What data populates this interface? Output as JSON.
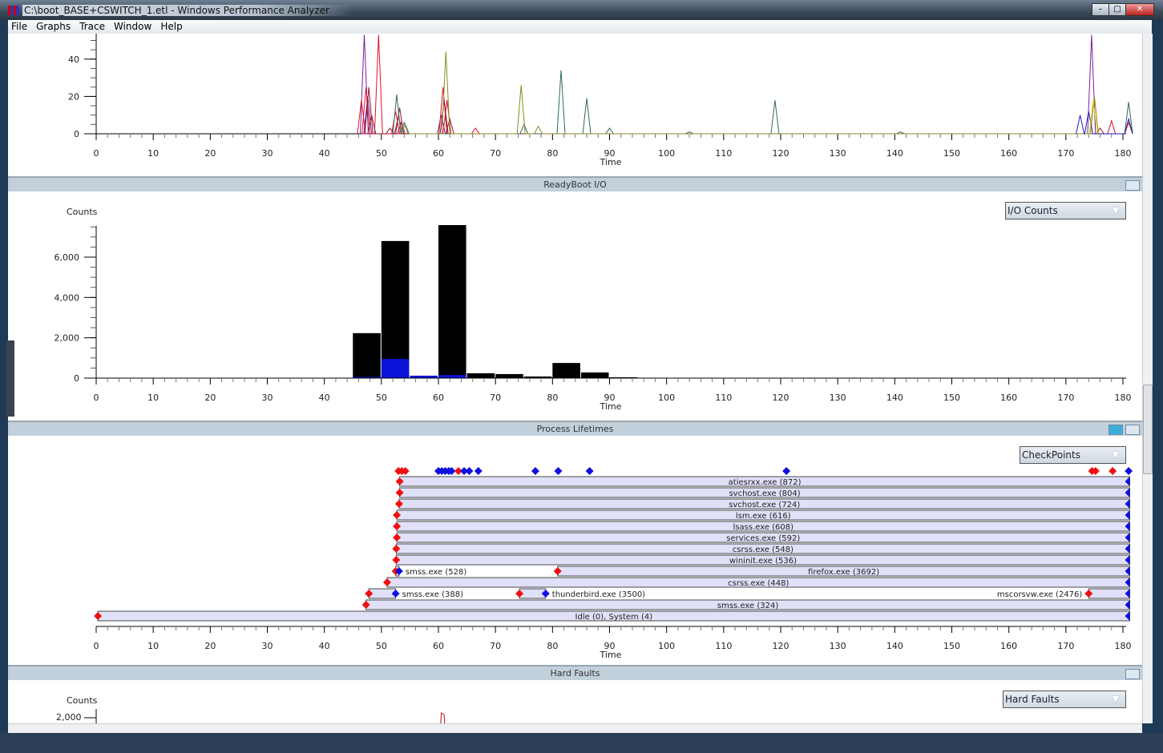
{
  "window": {
    "title": "C:\\boot_BASE+CSWITCH_1.etl - Windows Performance Analyzer",
    "minimize": "–",
    "maximize": "□",
    "close": "✕"
  },
  "menu": [
    "File",
    "Graphs",
    "Trace",
    "Window",
    "Help"
  ],
  "axis": {
    "xlabel": "Time",
    "xticks": [
      0,
      10,
      20,
      30,
      40,
      50,
      60,
      70,
      80,
      90,
      100,
      110,
      120,
      130,
      140,
      150,
      160,
      170,
      180
    ],
    "xlim": [
      0,
      181
    ]
  },
  "cpu_graph": {
    "yticks": [
      0,
      20,
      40
    ],
    "ylim": [
      0,
      53
    ],
    "series": [
      {
        "color": "#7a1fa0",
        "peaks": [
          [
            47,
            53
          ],
          [
            47.6,
            20
          ],
          [
            53.5,
            6
          ],
          [
            60.5,
            10
          ],
          [
            174.5,
            53
          ],
          [
            199,
            0
          ]
        ]
      },
      {
        "color": "#e0102a",
        "peaks": [
          [
            46.5,
            18
          ],
          [
            47.3,
            25
          ],
          [
            49.5,
            53
          ],
          [
            52.5,
            12
          ],
          [
            53,
            10
          ],
          [
            60.8,
            25
          ],
          [
            61.5,
            18
          ],
          [
            66.5,
            3
          ],
          [
            178,
            7
          ],
          [
            181,
            6
          ]
        ]
      },
      {
        "color": "#8b1a2a",
        "peaks": [
          [
            47.8,
            25
          ],
          [
            48.3,
            10
          ],
          [
            51.5,
            3
          ],
          [
            53.2,
            14
          ],
          [
            61,
            18
          ],
          [
            62,
            8
          ],
          [
            176,
            3
          ]
        ]
      },
      {
        "color": "#2e6b58",
        "peaks": [
          [
            52.7,
            21
          ],
          [
            54,
            6
          ],
          [
            75,
            5
          ],
          [
            81.5,
            34
          ],
          [
            86,
            19
          ],
          [
            90,
            3
          ],
          [
            104,
            1
          ],
          [
            119,
            18
          ],
          [
            141,
            1
          ],
          [
            181,
            17
          ]
        ]
      },
      {
        "color": "#8a8a20",
        "peaks": [
          [
            54.2,
            5
          ],
          [
            61.3,
            44
          ],
          [
            74.5,
            26
          ],
          [
            77.5,
            4
          ],
          [
            175,
            20
          ]
        ]
      },
      {
        "color": "#1d1db8",
        "peaks": [
          [
            172.5,
            10
          ],
          [
            174,
            12
          ],
          [
            181,
            8
          ]
        ]
      },
      {
        "color": "#e8d000",
        "peaks": [
          [
            174.8,
            18
          ]
        ]
      }
    ]
  },
  "readyboot": {
    "title": "ReadyBoot I/O",
    "ylabel": "Counts",
    "dropdown": "I/O Counts",
    "yticks": [
      0,
      2000,
      4000,
      6000
    ],
    "ytick_labels": [
      "0",
      "2,000",
      "4,000",
      "6,000"
    ],
    "ylim": [
      0,
      7600
    ],
    "bucket_width": 5,
    "bars": [
      {
        "start": 45,
        "total": 2230,
        "blue": 60
      },
      {
        "start": 50,
        "total": 6800,
        "blue": 950
      },
      {
        "start": 55,
        "total": 120,
        "blue": 120
      },
      {
        "start": 60,
        "total": 7590,
        "blue": 150
      },
      {
        "start": 65,
        "total": 240,
        "blue": 0
      },
      {
        "start": 70,
        "total": 200,
        "blue": 0
      },
      {
        "start": 75,
        "total": 80,
        "blue": 0
      },
      {
        "start": 80,
        "total": 750,
        "blue": 0
      },
      {
        "start": 85,
        "total": 280,
        "blue": 0
      },
      {
        "start": 90,
        "total": 40,
        "blue": 0
      }
    ],
    "colors": {
      "total": "#000000",
      "blue": "#0a14d8"
    }
  },
  "lifetimes": {
    "title": "Process Lifetimes",
    "dropdown": "CheckPoints",
    "checkpoints": [
      {
        "t": 53,
        "c": "red"
      },
      {
        "t": 53.6,
        "c": "red"
      },
      {
        "t": 54.2,
        "c": "red"
      },
      {
        "t": 60,
        "c": "blue"
      },
      {
        "t": 60.6,
        "c": "blue"
      },
      {
        "t": 61.2,
        "c": "blue"
      },
      {
        "t": 61.8,
        "c": "blue"
      },
      {
        "t": 62.3,
        "c": "blue"
      },
      {
        "t": 63.5,
        "c": "red"
      },
      {
        "t": 64.5,
        "c": "blue"
      },
      {
        "t": 65.4,
        "c": "blue"
      },
      {
        "t": 67,
        "c": "blue"
      },
      {
        "t": 77,
        "c": "blue"
      },
      {
        "t": 81,
        "c": "blue"
      },
      {
        "t": 86.5,
        "c": "blue"
      },
      {
        "t": 121,
        "c": "blue"
      },
      {
        "t": 174.6,
        "c": "red"
      },
      {
        "t": 175.2,
        "c": "red"
      },
      {
        "t": 178.2,
        "c": "red"
      },
      {
        "t": 181,
        "c": "blue"
      }
    ],
    "rows": [
      [
        {
          "label": "atiesrxx.exe (872)",
          "start": 53.2,
          "end": null
        }
      ],
      [
        {
          "label": "svchost.exe (804)",
          "start": 53.2,
          "end": null
        }
      ],
      [
        {
          "label": "svchost.exe (724)",
          "start": 53.1,
          "end": null
        }
      ],
      [
        {
          "label": "lsm.exe (616)",
          "start": 52.7,
          "end": null
        }
      ],
      [
        {
          "label": "lsass.exe (608)",
          "start": 52.7,
          "end": null
        }
      ],
      [
        {
          "label": "services.exe (592)",
          "start": 52.7,
          "end": null
        }
      ],
      [
        {
          "label": "csrss.exe (548)",
          "start": 52.6,
          "end": null
        }
      ],
      [
        {
          "label": "wininit.exe (536)",
          "start": 52.6,
          "end": null
        }
      ],
      [
        {
          "label": "smss.exe (528)",
          "start": 52.5,
          "end": 53.1,
          "label_pos": "after"
        },
        {
          "label": "firefox.exe (3692)",
          "start": 80.9,
          "end": null
        }
      ],
      [
        {
          "label": "csrss.exe (448)",
          "start": 51,
          "end": null
        }
      ],
      [
        {
          "label": "smss.exe (388)",
          "start": 47.8,
          "end": 52.5,
          "label_pos": "after"
        },
        {
          "label": "thunderbird.exe (3500)",
          "start": 74.2,
          "end": 78.8,
          "label_pos": "after"
        },
        {
          "label": "mscorsvw.exe (2476)",
          "start": 174,
          "end": null,
          "label_pos": "before"
        }
      ],
      [
        {
          "label": "smss.exe (324)",
          "start": 47.3,
          "end": null
        }
      ],
      [
        {
          "label": "Idle (0), System (4)",
          "start": 0.3,
          "end": null
        }
      ]
    ]
  },
  "hard_faults": {
    "title": "Hard Faults",
    "ylabel": "Counts",
    "dropdown": "Hard Faults",
    "ytick_label": "2,000"
  }
}
